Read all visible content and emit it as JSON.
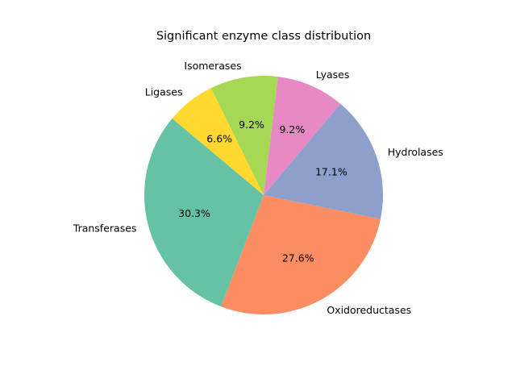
{
  "chart_data": {
    "type": "pie",
    "title": "Significant enzyme class distribution",
    "slices": [
      {
        "label": "Transferases",
        "value": 30.3,
        "pct_text": "30.3%",
        "color": "#66c2a5"
      },
      {
        "label": "Oxidoreductases",
        "value": 27.6,
        "pct_text": "27.6%",
        "color": "#fc8d62"
      },
      {
        "label": "Hydrolases",
        "value": 17.1,
        "pct_text": "17.1%",
        "color": "#8da0cb"
      },
      {
        "label": "Lyases",
        "value": 9.2,
        "pct_text": "9.2%",
        "color": "#e78ac3"
      },
      {
        "label": "Isomerases",
        "value": 9.2,
        "pct_text": "9.2%",
        "color": "#a6d854"
      },
      {
        "label": "Ligases",
        "value": 6.6,
        "pct_text": "6.6%",
        "color": "#ffd92f"
      }
    ]
  }
}
